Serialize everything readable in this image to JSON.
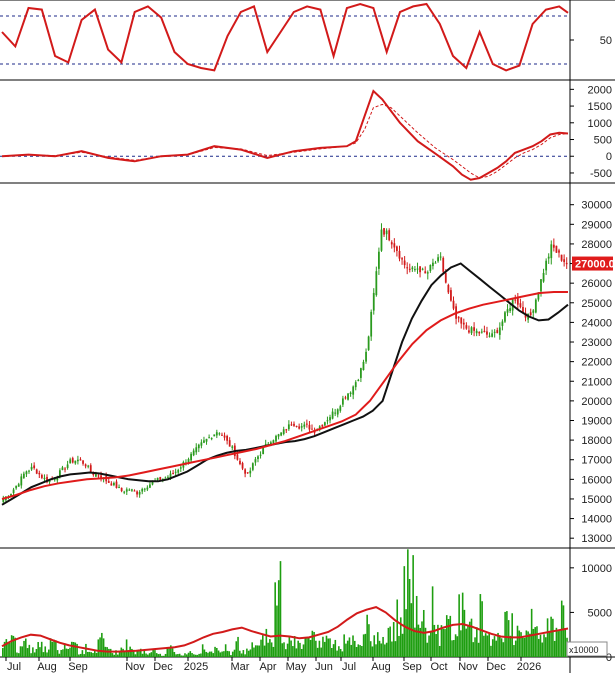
{
  "colors": {
    "up": "#2a9a1e",
    "down": "#d21a1a",
    "osc_line": "#d21a1a",
    "ma_black": "#111111",
    "ma_red": "#e01b1b",
    "volume": "#1e9e10",
    "volume_ma": "#d21a1a",
    "ref_dash": "#1c2a8a",
    "price_tag_bg": "#e01b1b",
    "price_tag_fg": "#ffffff"
  },
  "chart_data": [
    {
      "name": "stochastic",
      "type": "line",
      "yticks": [
        50
      ],
      "ylim": [
        0,
        100
      ],
      "reference_levels": [
        20,
        80
      ],
      "x": [
        0,
        3,
        6,
        9,
        12,
        15,
        18,
        21,
        24,
        27,
        30,
        33,
        36,
        39,
        42,
        45,
        48,
        51,
        54,
        57,
        60,
        63,
        66,
        69,
        72,
        75,
        78,
        81,
        84,
        87,
        90,
        93,
        96,
        99,
        102,
        105,
        108,
        111,
        114,
        117,
        120,
        123,
        126,
        128
      ],
      "values": [
        60,
        42,
        90,
        88,
        30,
        22,
        75,
        88,
        38,
        22,
        85,
        92,
        78,
        35,
        20,
        15,
        12,
        55,
        85,
        92,
        35,
        60,
        85,
        92,
        88,
        30,
        90,
        95,
        90,
        35,
        85,
        92,
        95,
        70,
        30,
        15,
        60,
        20,
        12,
        18,
        70,
        88,
        92,
        84
      ]
    },
    {
      "name": "macd",
      "type": "line",
      "yticks": [
        -500,
        0,
        500,
        1000,
        1500,
        2000
      ],
      "ylim": [
        -800,
        2100
      ],
      "reference_levels": [
        0
      ],
      "x": [
        0,
        6,
        12,
        18,
        24,
        30,
        36,
        42,
        48,
        54,
        60,
        66,
        72,
        78,
        80,
        82,
        84,
        86,
        88,
        90,
        94,
        98,
        102,
        104,
        106,
        108,
        110,
        112,
        114,
        116,
        118,
        120,
        122,
        124,
        126,
        128
      ],
      "values": [
        0,
        50,
        0,
        150,
        -50,
        -150,
        0,
        50,
        300,
        200,
        -50,
        150,
        250,
        300,
        450,
        1200,
        1950,
        1700,
        1350,
        1000,
        450,
        80,
        -300,
        -550,
        -700,
        -650,
        -500,
        -350,
        -150,
        100,
        200,
        300,
        450,
        650,
        700,
        680
      ],
      "signal": [
        0,
        40,
        20,
        120,
        -20,
        -120,
        -10,
        40,
        260,
        220,
        20,
        120,
        220,
        300,
        400,
        800,
        1450,
        1550,
        1450,
        1200,
        700,
        250,
        -100,
        -300,
        -500,
        -650,
        -600,
        -450,
        -250,
        -50,
        100,
        200,
        350,
        550,
        650,
        680
      ]
    },
    {
      "name": "price",
      "type": "candlestick",
      "yticks": [
        13000,
        14000,
        15000,
        16000,
        17000,
        18000,
        19000,
        20000,
        21000,
        22000,
        23000,
        24000,
        25000,
        26000,
        27000,
        28000,
        29000,
        30000
      ],
      "ylim": [
        12500,
        30800
      ],
      "last_price_label": "27000.00",
      "close": [
        15000,
        15300,
        15800,
        16400,
        16600,
        16200,
        15900,
        16100,
        16500,
        16900,
        17000,
        16800,
        16300,
        16200,
        15900,
        15700,
        15400,
        15500,
        15300,
        15600,
        15800,
        16000,
        16100,
        16300,
        16700,
        17100,
        17500,
        17900,
        18200,
        18500,
        18000,
        17500,
        16700,
        16200,
        17000,
        17500,
        18000,
        18200,
        18500,
        18900,
        18700,
        18700,
        18500,
        18800,
        19200,
        19600,
        20200,
        20600,
        21300,
        22500,
        25500,
        28800,
        28400,
        27800,
        27000,
        26600,
        26800,
        26400,
        27000,
        27200,
        25500,
        24200,
        23800,
        23600,
        23500,
        23400,
        23300,
        23800,
        24600,
        25300,
        24600,
        24200,
        25400,
        26800,
        27900,
        27400,
        27000
      ],
      "ma_black": [
        14700,
        15000,
        15300,
        15600,
        15800,
        16000,
        16150,
        16250,
        16300,
        16350,
        16300,
        16200,
        16100,
        16000,
        15950,
        15900,
        15900,
        16000,
        16200,
        16400,
        16700,
        17000,
        17200,
        17350,
        17450,
        17500,
        17600,
        17700,
        17800,
        17900,
        17950,
        18050,
        18200,
        18400,
        18600,
        18800,
        19000,
        19200,
        19500,
        20000,
        21500,
        23000,
        24200,
        25100,
        25900,
        26400,
        26800,
        27000,
        26600,
        26200,
        25800,
        25400,
        25000,
        24600,
        24300,
        24100,
        24150,
        24500,
        24900
      ],
      "ma_red": [
        15000,
        15200,
        15450,
        15650,
        15800,
        15900,
        16000,
        16050,
        16100,
        16200,
        16350,
        16500,
        16650,
        16800,
        16950,
        17100,
        17250,
        17400,
        17550,
        17750,
        17950,
        18200,
        18450,
        18700,
        18950,
        19300,
        20000,
        21000,
        22000,
        22900,
        23600,
        24100,
        24450,
        24700,
        24900,
        25050,
        25200,
        25350,
        25500,
        25550,
        25550
      ]
    },
    {
      "name": "volume",
      "type": "bar",
      "yticks": [
        0,
        5000,
        10000
      ],
      "ylim": [
        0,
        12000
      ],
      "unit_label": "x10000",
      "values": [
        1800,
        3000,
        1200,
        2500,
        900,
        1500,
        1100,
        2000,
        800,
        1400,
        1600,
        700,
        1300,
        900,
        2400,
        1000,
        600,
        1200,
        1800,
        700,
        1000,
        500,
        900,
        300,
        1200,
        600,
        400,
        800,
        500,
        1100,
        700,
        900,
        1300,
        600,
        2000,
        800,
        1500,
        2200,
        3500,
        1800,
        8300,
        2500,
        3100,
        1700,
        2800,
        4200,
        1600,
        2700,
        2100,
        1400,
        3300,
        2200,
        1900,
        4500,
        2500,
        3600,
        3000,
        4700,
        5300,
        11800,
        8800,
        7000,
        4500,
        6500,
        3200,
        4200,
        2800,
        6700,
        4100,
        3400,
        6200,
        2800,
        2500,
        4400,
        5800,
        3600,
        2900,
        7000,
        3000,
        2300,
        4100,
        3100,
        5800,
        3200
      ],
      "ma": [
        1200,
        1800,
        2200,
        2500,
        2400,
        2000,
        1600,
        1300,
        1100,
        900,
        700,
        600,
        600,
        650,
        700,
        800,
        900,
        1000,
        1100,
        1300,
        1700,
        2200,
        2600,
        2800,
        3100,
        3300,
        2900,
        2600,
        2300,
        2400,
        2300,
        2100,
        2200,
        2500,
        2800,
        3400,
        4200,
        4900,
        5300,
        5600,
        5000,
        4100,
        3400,
        2900,
        2700,
        2900,
        3300,
        3600,
        3700,
        3400,
        3000,
        2600,
        2300,
        2200,
        2200,
        2400,
        2600,
        2800,
        3000,
        3200
      ]
    },
    {
      "name": "time_axis",
      "type": "table",
      "x_labels": [
        "Jul",
        "Aug",
        "Sep",
        "Nov",
        "Dec",
        "2025",
        "Mar",
        "Apr",
        "May",
        "Jun",
        "Jul",
        "Aug",
        "Sep",
        "Oct",
        "Nov",
        "Dec",
        "2026"
      ]
    }
  ]
}
